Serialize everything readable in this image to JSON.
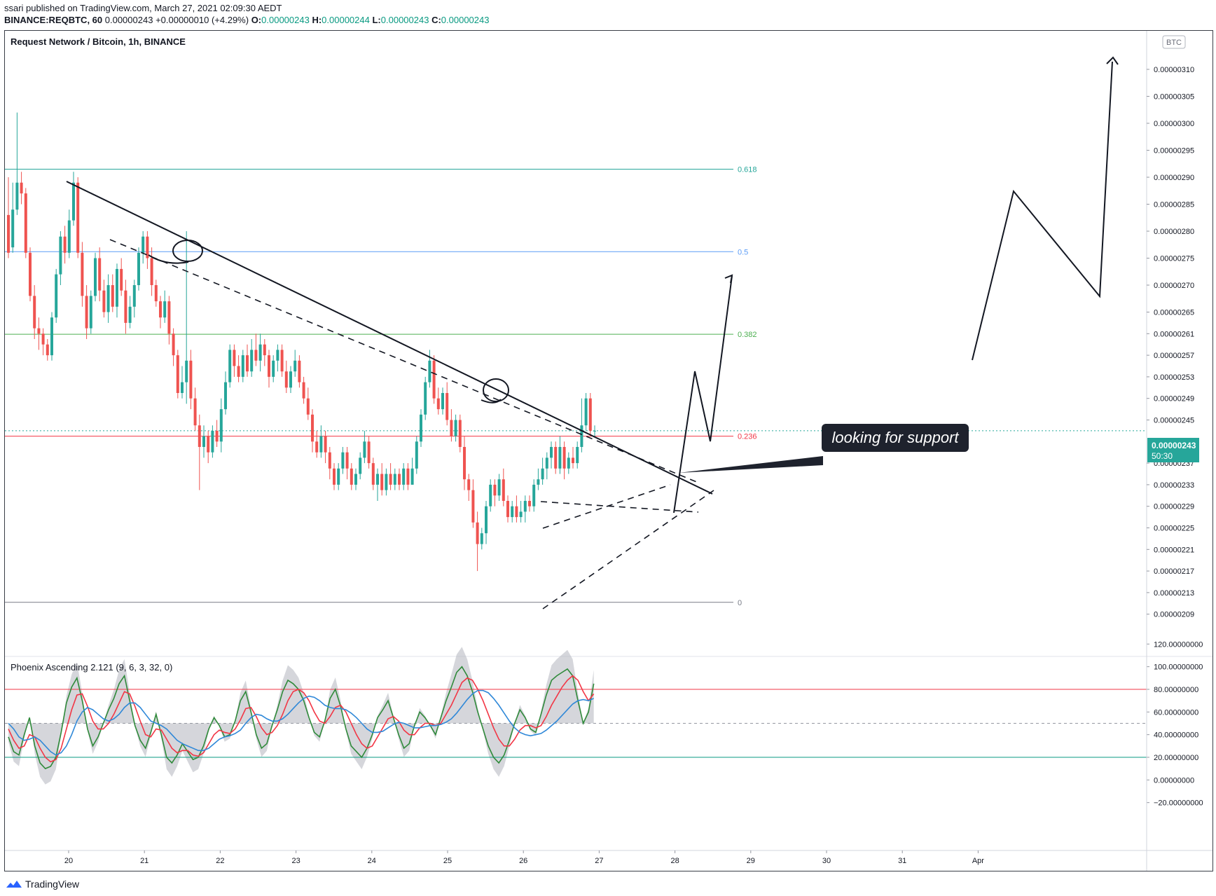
{
  "header": {
    "published": "ssari published on TradingView.com, March 27, 2021 02:09:30 AEDT",
    "symbol_line": "BINANCE:REQBTC, 60",
    "last": "0.00000243",
    "change": "+0.00000010 (+4.29%)",
    "o_label": "O:",
    "o": "0.00000243",
    "h_label": "H:",
    "h": "0.00000244",
    "l_label": "L:",
    "l": "0.00000243",
    "c_label": "C:",
    "c": "0.00000243"
  },
  "main_pane": {
    "title": "Request Network / Bitcoin, 1h, BINANCE",
    "currency_badge": "BTC",
    "price_tag": "0.00000243",
    "countdown": "50:30",
    "annotation": "looking for support"
  },
  "indicator_pane": {
    "title": "Phoenix Ascending 2.121 (9, 6, 3, 32, 0)"
  },
  "footer": {
    "brand": "TradingView"
  },
  "chart_data": {
    "type": "candlestick",
    "price_axis_ticks": [
      "0.00000310",
      "0.00000305",
      "0.00000300",
      "0.00000295",
      "0.00000290",
      "0.00000285",
      "0.00000280",
      "0.00000275",
      "0.00000270",
      "0.00000265",
      "0.00000261",
      "0.00000257",
      "0.00000253",
      "0.00000249",
      "0.00000245",
      "0.00000237",
      "0.00000233",
      "0.00000229",
      "0.00000225",
      "0.00000221",
      "0.00000217",
      "0.00000213",
      "0.00000209"
    ],
    "price_axis_values": [
      310,
      305,
      300,
      295,
      290,
      285,
      280,
      275,
      270,
      265,
      261,
      257,
      253,
      249,
      245,
      237,
      233,
      229,
      225,
      221,
      217,
      213,
      209
    ],
    "time_axis": [
      "20",
      "21",
      "22",
      "23",
      "24",
      "25",
      "26",
      "27",
      "28",
      "29",
      "30",
      "31",
      "Apr"
    ],
    "fib_levels": [
      {
        "label": "0.618",
        "price": 291.5,
        "color": "#26a69a"
      },
      {
        "label": "0.5",
        "price": 276.2,
        "color": "#5b9cf6"
      },
      {
        "label": "0.382",
        "price": 260.9,
        "color": "#4caf50"
      },
      {
        "label": "0.236",
        "price": 242.0,
        "color": "#f23645"
      },
      {
        "label": "0",
        "price": 211.2,
        "color": "#787b86"
      }
    ],
    "current_price": 243,
    "candles": [
      [
        283,
        276,
        290,
        275
      ],
      [
        277,
        284,
        289,
        276
      ],
      [
        284,
        289,
        302,
        283
      ],
      [
        289,
        287,
        291,
        285
      ],
      [
        287,
        276,
        288,
        275
      ],
      [
        276,
        268,
        277,
        267
      ],
      [
        268,
        262,
        270,
        260
      ],
      [
        262,
        261,
        264,
        258
      ],
      [
        261,
        259,
        262,
        257
      ],
      [
        259,
        257,
        260,
        256
      ],
      [
        257,
        264,
        265,
        256
      ],
      [
        264,
        272,
        273,
        263
      ],
      [
        272,
        279,
        280,
        270
      ],
      [
        279,
        276,
        281,
        274
      ],
      [
        276,
        282,
        284,
        275
      ],
      [
        282,
        289,
        291,
        281
      ],
      [
        289,
        276,
        290,
        275
      ],
      [
        276,
        268,
        278,
        266
      ],
      [
        268,
        262,
        270,
        260
      ],
      [
        262,
        268,
        269,
        261
      ],
      [
        268,
        275,
        276,
        267
      ],
      [
        275,
        269,
        277,
        267
      ],
      [
        269,
        265,
        271,
        264
      ],
      [
        265,
        270,
        272,
        263
      ],
      [
        270,
        266,
        272,
        265
      ],
      [
        266,
        273,
        274,
        264
      ],
      [
        273,
        269,
        275,
        268
      ],
      [
        269,
        263,
        271,
        261
      ],
      [
        263,
        266,
        268,
        262
      ],
      [
        266,
        270,
        271,
        264
      ],
      [
        270,
        276,
        277,
        269
      ],
      [
        276,
        279,
        280,
        274
      ],
      [
        279,
        275,
        280,
        273
      ],
      [
        275,
        270,
        277,
        268
      ],
      [
        270,
        267,
        271,
        266
      ],
      [
        267,
        264,
        268,
        262
      ],
      [
        264,
        267,
        269,
        263
      ],
      [
        267,
        261,
        268,
        259
      ],
      [
        261,
        257,
        262,
        255
      ],
      [
        257,
        250,
        258,
        249
      ],
      [
        250,
        252,
        255,
        249
      ],
      [
        252,
        256,
        280,
        248
      ],
      [
        256,
        249,
        258,
        247
      ],
      [
        249,
        244,
        251,
        243
      ],
      [
        244,
        240,
        246,
        232
      ],
      [
        240,
        242,
        244,
        238
      ],
      [
        242,
        239,
        243,
        237
      ],
      [
        239,
        243,
        244,
        238
      ],
      [
        243,
        241,
        245,
        240
      ],
      [
        241,
        247,
        249,
        239
      ],
      [
        247,
        252,
        254,
        246
      ],
      [
        252,
        258,
        259,
        251
      ],
      [
        258,
        255,
        259,
        253
      ],
      [
        255,
        253,
        257,
        252
      ],
      [
        253,
        257,
        258,
        252
      ],
      [
        257,
        254,
        259,
        253
      ],
      [
        254,
        258,
        260,
        253
      ],
      [
        258,
        256,
        261,
        255
      ],
      [
        256,
        259,
        261,
        254
      ],
      [
        259,
        257,
        260,
        255
      ],
      [
        257,
        253,
        258,
        251
      ],
      [
        253,
        256,
        257,
        252
      ],
      [
        256,
        258,
        259,
        254
      ],
      [
        258,
        254,
        259,
        253
      ],
      [
        254,
        251,
        256,
        250
      ],
      [
        251,
        254,
        255,
        250
      ],
      [
        254,
        256,
        258,
        253
      ],
      [
        256,
        252,
        257,
        251
      ],
      [
        252,
        249,
        253,
        248
      ],
      [
        249,
        246,
        251,
        245
      ],
      [
        246,
        241,
        247,
        239
      ],
      [
        241,
        239,
        243,
        238
      ],
      [
        239,
        242,
        244,
        238
      ],
      [
        242,
        239,
        243,
        237
      ],
      [
        239,
        236,
        240,
        234
      ],
      [
        236,
        233,
        237,
        232
      ],
      [
        233,
        236,
        237,
        232
      ],
      [
        236,
        239,
        240,
        235
      ],
      [
        239,
        236,
        240,
        234
      ],
      [
        236,
        233,
        237,
        232
      ],
      [
        233,
        235,
        236,
        232
      ],
      [
        235,
        238,
        239,
        234
      ],
      [
        238,
        241,
        243,
        237
      ],
      [
        241,
        237,
        242,
        236
      ],
      [
        237,
        233,
        238,
        232
      ],
      [
        233,
        235,
        236,
        230
      ],
      [
        235,
        232,
        237,
        231
      ],
      [
        232,
        235,
        236,
        231
      ],
      [
        235,
        233,
        237,
        232
      ],
      [
        233,
        235,
        236,
        232
      ],
      [
        235,
        233,
        236,
        232
      ],
      [
        233,
        236,
        237,
        232
      ],
      [
        236,
        233,
        237,
        232
      ],
      [
        233,
        236,
        238,
        233
      ],
      [
        236,
        241,
        242,
        235
      ],
      [
        241,
        246,
        247,
        240
      ],
      [
        246,
        252,
        253,
        245
      ],
      [
        252,
        256,
        258,
        251
      ],
      [
        256,
        249,
        257,
        248
      ],
      [
        249,
        247,
        251,
        246
      ],
      [
        247,
        250,
        251,
        246
      ],
      [
        250,
        245,
        252,
        244
      ],
      [
        245,
        242,
        247,
        241
      ],
      [
        242,
        245,
        246,
        241
      ],
      [
        245,
        240,
        246,
        239
      ],
      [
        240,
        234,
        242,
        232
      ],
      [
        234,
        232,
        235,
        230
      ],
      [
        232,
        226,
        234,
        225
      ],
      [
        226,
        222,
        228,
        217
      ],
      [
        222,
        224,
        225,
        221
      ],
      [
        224,
        229,
        230,
        222
      ],
      [
        229,
        233,
        234,
        228
      ],
      [
        233,
        231,
        234,
        229
      ],
      [
        231,
        234,
        235,
        230
      ],
      [
        234,
        230,
        236,
        229
      ],
      [
        230,
        227,
        231,
        226
      ],
      [
        227,
        229,
        230,
        226
      ],
      [
        229,
        227,
        231,
        226
      ],
      [
        227,
        228,
        230,
        226
      ],
      [
        228,
        230,
        231,
        226
      ],
      [
        230,
        229,
        231,
        228
      ],
      [
        229,
        233,
        234,
        228
      ],
      [
        233,
        234,
        236,
        232
      ],
      [
        234,
        236,
        238,
        233
      ],
      [
        236,
        238,
        239,
        234
      ],
      [
        238,
        240,
        241,
        236
      ],
      [
        240,
        236,
        241,
        235
      ],
      [
        236,
        240,
        242,
        235
      ],
      [
        240,
        236,
        241,
        234
      ],
      [
        236,
        238,
        239,
        235
      ],
      [
        238,
        237,
        240,
        236
      ],
      [
        237,
        240,
        241,
        236
      ],
      [
        240,
        244,
        249,
        239
      ],
      [
        244,
        249,
        250,
        243
      ],
      [
        249,
        243,
        250,
        242
      ],
      [
        243,
        243,
        244,
        242
      ]
    ],
    "indicator_axis_ticks": [
      "120.00000000",
      "100.00000000",
      "80.00000000",
      "60.00000000",
      "40.00000000",
      "20.00000000",
      "0.00000000",
      "−20.00000000"
    ],
    "indicator_axis_values": [
      120,
      100,
      80,
      60,
      40,
      20,
      0,
      -20
    ],
    "indicator_levels": [
      {
        "value": 80,
        "color": "#f23645"
      },
      {
        "value": 50,
        "color": "#9598a1"
      },
      {
        "value": 20,
        "color": "#089981"
      }
    ],
    "indicator_series": [
      {
        "color": "#2f8a3a",
        "values": [
          38,
          25,
          22,
          40,
          55,
          30,
          15,
          10,
          12,
          20,
          42,
          68,
          82,
          90,
          70,
          45,
          30,
          38,
          50,
          62,
          72,
          85,
          92,
          70,
          48,
          35,
          28,
          42,
          58,
          40,
          20,
          15,
          22,
          32,
          25,
          18,
          20,
          30,
          45,
          55,
          48,
          38,
          40,
          52,
          70,
          78,
          60,
          40,
          28,
          32,
          48,
          62,
          78,
          88,
          85,
          80,
          70,
          55,
          42,
          38,
          52,
          72,
          80,
          65,
          45,
          30,
          25,
          20,
          28,
          40,
          55,
          62,
          70,
          55,
          40,
          28,
          32,
          48,
          60,
          55,
          48,
          40,
          55,
          70,
          82,
          95,
          100,
          92,
          78,
          60,
          45,
          30,
          20,
          15,
          22,
          35,
          50,
          62,
          55,
          45,
          42,
          58,
          75,
          88,
          92,
          95,
          98,
          92,
          70,
          50,
          60,
          85
        ]
      },
      {
        "color": "#f23645",
        "values": [
          45,
          35,
          28,
          30,
          40,
          38,
          28,
          20,
          16,
          18,
          28,
          45,
          62,
          75,
          76,
          65,
          52,
          45,
          45,
          50,
          58,
          68,
          78,
          76,
          65,
          52,
          40,
          38,
          45,
          44,
          36,
          28,
          24,
          26,
          26,
          22,
          21,
          24,
          32,
          40,
          44,
          42,
          41,
          45,
          53,
          63,
          64,
          56,
          46,
          40,
          42,
          48,
          58,
          70,
          78,
          80,
          77,
          70,
          60,
          52,
          50,
          56,
          64,
          66,
          60,
          50,
          40,
          32,
          28,
          30,
          38,
          46,
          54,
          56,
          52,
          44,
          40,
          40,
          46,
          50,
          50,
          48,
          50,
          58,
          66,
          76,
          86,
          90,
          88,
          80,
          70,
          58,
          46,
          36,
          30,
          30,
          36,
          44,
          48,
          48,
          46,
          48,
          56,
          66,
          74,
          82,
          88,
          92,
          88,
          78,
          70,
          76
        ]
      },
      {
        "color": "#2f88d8",
        "values": [
          50,
          45,
          38,
          35,
          36,
          38,
          35,
          30,
          25,
          22,
          24,
          30,
          40,
          52,
          60,
          64,
          62,
          58,
          54,
          52,
          54,
          58,
          64,
          68,
          68,
          64,
          58,
          52,
          50,
          48,
          45,
          40,
          35,
          32,
          30,
          28,
          26,
          26,
          28,
          32,
          36,
          38,
          39,
          41,
          44,
          50,
          55,
          58,
          57,
          54,
          52,
          52,
          54,
          58,
          63,
          68,
          72,
          74,
          73,
          70,
          66,
          64,
          63,
          63,
          62,
          59,
          55,
          50,
          45,
          42,
          42,
          43,
          46,
          49,
          51,
          50,
          48,
          46,
          46,
          47,
          48,
          48,
          49,
          51,
          54,
          59,
          65,
          71,
          76,
          79,
          79,
          77,
          72,
          66,
          59,
          52,
          46,
          42,
          40,
          39,
          40,
          41,
          44,
          48,
          52,
          57,
          62,
          67,
          70,
          71,
          70,
          72
        ]
      }
    ]
  }
}
